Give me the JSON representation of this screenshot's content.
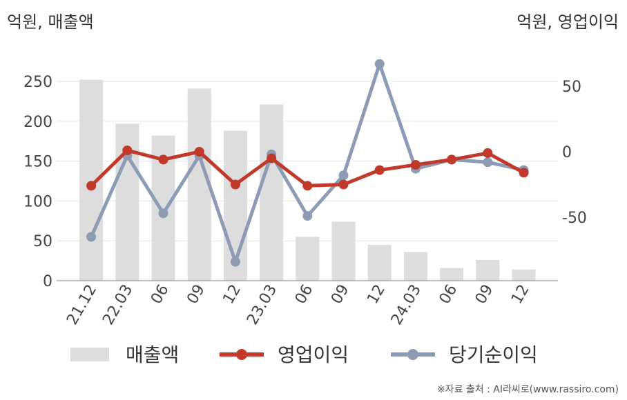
{
  "unit_left": "억원, 매출액",
  "unit_right": "억원, 영업이익",
  "source": "※자료 출처 : AI라씨로(www.rassiro.com)",
  "colors": {
    "bar": "#dddddd",
    "operating": "#c0392b",
    "net": "#8e9bb5",
    "axis": "#aaaaaa",
    "grid": "#e6e6e6"
  },
  "chart_data": {
    "type": "bar",
    "categories": [
      "21.12",
      "22.03",
      "06",
      "09",
      "12",
      "23.03",
      "06",
      "09",
      "12",
      "24.03",
      "06",
      "09",
      "12"
    ],
    "series": [
      {
        "name": "매출액",
        "type": "bar",
        "axis": "left",
        "values": [
          252,
          197,
          182,
          241,
          188,
          221,
          55,
          74,
          45,
          36,
          16,
          26,
          14
        ]
      },
      {
        "name": "영업이익",
        "type": "line",
        "axis": "right",
        "values": [
          -26,
          1,
          -6,
          0,
          -25,
          -5,
          -26,
          -25,
          -14,
          -10,
          -6,
          -1,
          -16
        ]
      },
      {
        "name": "당기순이익",
        "type": "line",
        "axis": "right",
        "values": [
          -65,
          -3,
          -47,
          -3,
          -84,
          -2,
          -49,
          -18,
          67,
          -13,
          -6,
          -8,
          -14
        ]
      }
    ],
    "left_axis": {
      "ticks": [
        "0",
        "50",
        "100",
        "150",
        "200",
        "250"
      ],
      "ylim": [
        0,
        250
      ]
    },
    "right_axis": {
      "ticks": [
        "-50",
        "0",
        "50"
      ],
      "ylim": [
        -50,
        50
      ]
    },
    "legend_position": "bottom",
    "grid": true
  }
}
